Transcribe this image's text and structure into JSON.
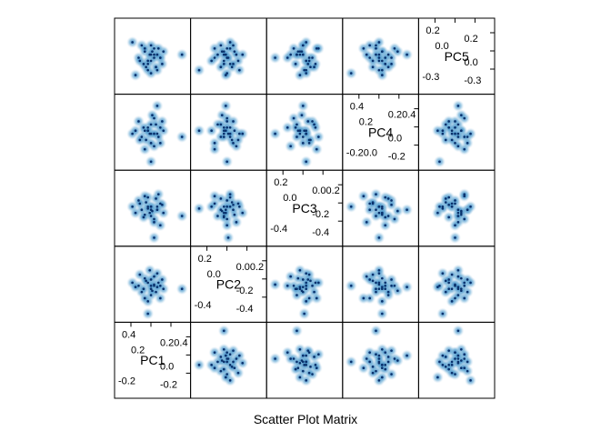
{
  "chart_data": {
    "type": "scatter",
    "title": "",
    "xlabel": "Scatter Plot Matrix",
    "variables": [
      "PC1",
      "PC2",
      "PC3",
      "PC4",
      "PC5"
    ],
    "range": [
      -0.5,
      0.55
    ],
    "diagonal_ticks": {
      "PC1": {
        "upper": [
          "0.4",
          "0.2",
          "0.20.4"
        ],
        "lower": [
          "-0.2",
          "0.0",
          "-0.2"
        ]
      },
      "PC2": {
        "upper": [
          "0.2",
          "0.0",
          "0.00.2"
        ],
        "lower": [
          "-0.4",
          "-0.2",
          "-0.4"
        ]
      },
      "PC3": {
        "upper": [
          "0.2",
          "0.0",
          "0.00.2"
        ],
        "lower": [
          "-0.4",
          "-0.2",
          "-0.4"
        ]
      },
      "PC4": {
        "upper": [
          "0.4",
          "0.2",
          "0.20.4"
        ],
        "lower": [
          "-0.20.0",
          "0.0",
          "-0.2"
        ]
      },
      "PC5": {
        "upper": [
          "0.2",
          "0.0",
          "0.2"
        ],
        "lower": [
          "-0.3",
          "0.0",
          "-0.3"
        ]
      }
    },
    "point_color": "#1f5f9c",
    "halo_color": "#9ecae1",
    "grid": false,
    "series": [
      {
        "values": [
          [
            0.0,
            -0.05,
            0.05,
            0.0,
            -0.05
          ],
          [
            -0.1,
            0.12,
            -0.08,
            0.05,
            0.1
          ],
          [
            0.15,
            -0.2,
            0.1,
            -0.15,
            0.0
          ],
          [
            -0.05,
            0.05,
            0.2,
            0.1,
            -0.1
          ],
          [
            0.05,
            0.0,
            -0.15,
            0.25,
            0.15
          ],
          [
            -0.15,
            -0.1,
            0.0,
            -0.05,
            0.2
          ],
          [
            0.1,
            0.2,
            0.05,
            0.0,
            -0.2
          ],
          [
            0.0,
            -0.15,
            -0.1,
            0.15,
            0.05
          ],
          [
            -0.08,
            0.08,
            0.12,
            -0.1,
            -0.15
          ],
          [
            0.2,
            -0.05,
            -0.05,
            0.05,
            0.1
          ],
          [
            -0.2,
            0.0,
            0.15,
            0.2,
            0.0
          ],
          [
            0.05,
            0.15,
            -0.2,
            -0.2,
            0.05
          ],
          [
            -0.05,
            -0.25,
            0.05,
            0.05,
            -0.05
          ],
          [
            0.12,
            0.05,
            0.25,
            -0.05,
            0.15
          ],
          [
            -0.12,
            -0.05,
            -0.12,
            0.1,
            -0.1
          ],
          [
            0.0,
            0.1,
            0.0,
            -0.15,
            0.2
          ],
          [
            0.08,
            -0.1,
            0.18,
            0.15,
            -0.15
          ],
          [
            -0.02,
            0.25,
            -0.05,
            0.0,
            0.05
          ],
          [
            0.15,
            0.0,
            -0.25,
            0.1,
            0.0
          ],
          [
            -0.18,
            0.18,
            0.1,
            -0.1,
            -0.05
          ],
          [
            0.02,
            -0.08,
            -0.02,
            0.3,
            0.1
          ],
          [
            -0.1,
            -0.2,
            0.22,
            -0.25,
            0.15
          ],
          [
            0.18,
            0.1,
            0.08,
            0.2,
            -0.1
          ],
          [
            0.5,
            -0.05,
            -0.1,
            -0.05,
            0.05
          ],
          [
            -0.05,
            -0.45,
            0.02,
            0.05,
            -0.2
          ],
          [
            0.05,
            0.02,
            -0.45,
            0.0,
            0.0
          ],
          [
            0.1,
            -0.02,
            0.0,
            0.45,
            0.05
          ],
          [
            -0.3,
            0.05,
            0.05,
            0.0,
            0.25
          ],
          [
            0.0,
            0.0,
            0.05,
            -0.45,
            -0.25
          ],
          [
            -0.25,
            -0.02,
            -0.05,
            0.05,
            -0.28
          ]
        ]
      }
    ]
  }
}
